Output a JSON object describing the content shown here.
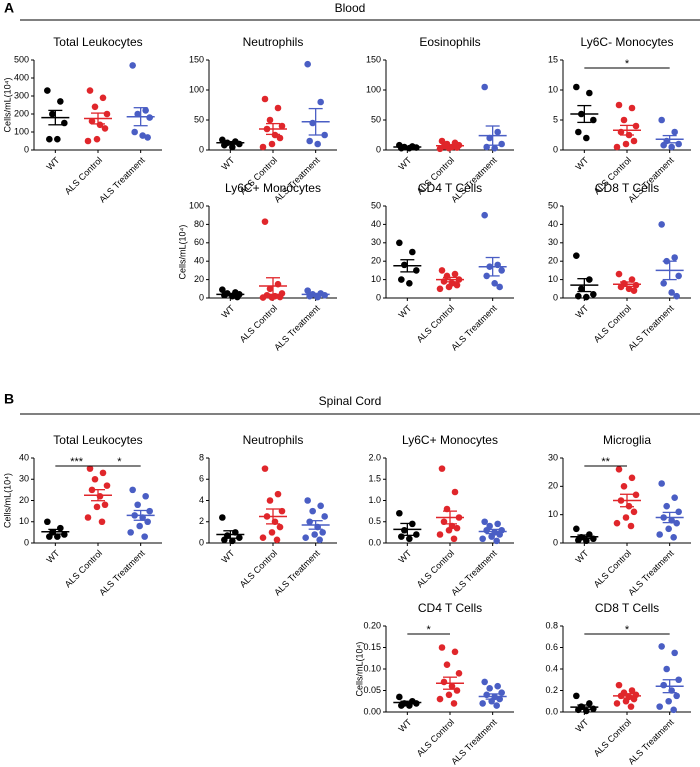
{
  "sections": [
    {
      "label": "A",
      "title": "Blood"
    },
    {
      "label": "B",
      "title": "Spinal Cord"
    }
  ],
  "chart_data": [
    {
      "type": "scatter",
      "title": "Total Leukocytes",
      "y_label": "Cells/mL(10⁴)",
      "categories": [
        "WT",
        "ALS Control",
        "ALS Treatment"
      ],
      "ylim": [
        0,
        500
      ],
      "yticks": [
        0,
        100,
        200,
        300,
        400,
        500
      ],
      "groups": [
        {
          "color": "#000000",
          "values": [
            330,
            270,
            200,
            150,
            60,
            60
          ],
          "mean": 180,
          "sem": 40
        },
        {
          "color": "#e0262b",
          "values": [
            330,
            290,
            240,
            200,
            160,
            140,
            120,
            60,
            50
          ],
          "mean": 175,
          "sem": 30
        },
        {
          "color": "#4a5ec4",
          "values": [
            470,
            220,
            200,
            180,
            100,
            80,
            70
          ],
          "mean": 185,
          "sem": 50
        }
      ]
    },
    {
      "type": "scatter",
      "title": "Neutrophils",
      "categories": [
        "WT",
        "ALS Control",
        "ALS Treatment"
      ],
      "ylim": [
        0,
        150
      ],
      "yticks": [
        0,
        50,
        100,
        150
      ],
      "groups": [
        {
          "color": "#000000",
          "values": [
            17,
            14,
            12,
            10,
            8,
            5
          ],
          "mean": 12,
          "sem": 2
        },
        {
          "color": "#e0262b",
          "values": [
            85,
            70,
            50,
            40,
            35,
            25,
            20,
            10,
            5
          ],
          "mean": 35,
          "sem": 9
        },
        {
          "color": "#4a5ec4",
          "values": [
            143,
            80,
            45,
            25,
            15,
            10
          ],
          "mean": 47,
          "sem": 22
        }
      ]
    },
    {
      "type": "scatter",
      "title": "Eosinophils",
      "categories": [
        "WT",
        "ALS Control",
        "ALS Treatment"
      ],
      "ylim": [
        0,
        150
      ],
      "yticks": [
        0,
        50,
        100,
        150
      ],
      "groups": [
        {
          "color": "#000000",
          "values": [
            8,
            6,
            5,
            4,
            3,
            3
          ],
          "mean": 5,
          "sem": 1
        },
        {
          "color": "#e0262b",
          "values": [
            15,
            12,
            10,
            8,
            6,
            5,
            4,
            3,
            2
          ],
          "mean": 7,
          "sem": 1.5
        },
        {
          "color": "#4a5ec4",
          "values": [
            105,
            30,
            20,
            10,
            5,
            3
          ],
          "mean": 24,
          "sem": 16
        }
      ]
    },
    {
      "type": "scatter",
      "title": "Ly6C- Monocytes",
      "categories": [
        "WT",
        "ALS Control",
        "ALS Treatment"
      ],
      "ylim": [
        0,
        15
      ],
      "yticks": [
        0,
        5,
        10,
        15
      ],
      "groups": [
        {
          "color": "#000000",
          "values": [
            10.5,
            9.5,
            6,
            5,
            3,
            2
          ],
          "mean": 6,
          "sem": 1.4
        },
        {
          "color": "#e0262b",
          "values": [
            7.5,
            7,
            5,
            4,
            3,
            2.5,
            1.5,
            1,
            0.5
          ],
          "mean": 3.3,
          "sem": 0.8
        },
        {
          "color": "#4a5ec4",
          "values": [
            5,
            3,
            1.5,
            1,
            0.8,
            0.5
          ],
          "mean": 1.8,
          "sem": 0.6
        }
      ],
      "significance": [
        {
          "between": [
            0,
            2
          ],
          "label": "*"
        }
      ]
    },
    {
      "type": "scatter",
      "title": "Ly6C+ Monocytes",
      "y_label": "Cells/mL(10⁴)",
      "categories": [
        "WT",
        "ALS Control",
        "ALS Treatment"
      ],
      "ylim": [
        0,
        100
      ],
      "yticks": [
        0,
        20,
        40,
        60,
        80,
        100
      ],
      "groups": [
        {
          "color": "#000000",
          "values": [
            9,
            6,
            5,
            4,
            3,
            2,
            1
          ],
          "mean": 4,
          "sem": 1
        },
        {
          "color": "#e0262b",
          "values": [
            83,
            15,
            10,
            5,
            3,
            2,
            1,
            0.5,
            0.5
          ],
          "mean": 13,
          "sem": 9
        },
        {
          "color": "#4a5ec4",
          "values": [
            8,
            5,
            4,
            3,
            2,
            1
          ],
          "mean": 4,
          "sem": 1
        }
      ]
    },
    {
      "type": "scatter",
      "title": "CD4 T Cells",
      "categories": [
        "WT",
        "ALS Control",
        "ALS Treatment"
      ],
      "ylim": [
        0,
        50
      ],
      "yticks": [
        0,
        10,
        20,
        30,
        40,
        50
      ],
      "groups": [
        {
          "color": "#000000",
          "values": [
            30,
            25,
            18,
            15,
            10,
            8
          ],
          "mean": 17.5,
          "sem": 3.3
        },
        {
          "color": "#e0262b",
          "values": [
            15,
            13,
            12,
            10,
            9,
            8,
            7,
            6,
            5
          ],
          "mean": 10,
          "sem": 1.2
        },
        {
          "color": "#4a5ec4",
          "values": [
            45,
            18,
            17,
            15,
            12,
            8,
            6
          ],
          "mean": 17,
          "sem": 5
        }
      ]
    },
    {
      "type": "scatter",
      "title": "CD8 T Cells",
      "categories": [
        "WT",
        "ALS Control",
        "ALS Treatment"
      ],
      "ylim": [
        0,
        50
      ],
      "yticks": [
        0,
        10,
        20,
        30,
        40,
        50
      ],
      "groups": [
        {
          "color": "#000000",
          "values": [
            23,
            10,
            5,
            2,
            1,
            0.5
          ],
          "mean": 7,
          "sem": 3.5
        },
        {
          "color": "#e0262b",
          "values": [
            13,
            10,
            8,
            7,
            6,
            5,
            4
          ],
          "mean": 7.5,
          "sem": 1.2
        },
        {
          "color": "#4a5ec4",
          "values": [
            40,
            22,
            20,
            12,
            8,
            3,
            1
          ],
          "mean": 15,
          "sem": 5
        }
      ]
    },
    {
      "type": "scatter",
      "title": "Total Leukocytes",
      "y_label": "Cells/mL(10⁴)",
      "categories": [
        "WT",
        "ALS Control",
        "ALS Treatment"
      ],
      "ylim": [
        0,
        40
      ],
      "yticks": [
        0,
        10,
        20,
        30,
        40
      ],
      "groups": [
        {
          "color": "#000000",
          "values": [
            10,
            7,
            5,
            4,
            3,
            3
          ],
          "mean": 5.3,
          "sem": 1.1
        },
        {
          "color": "#e0262b",
          "values": [
            35,
            33,
            30,
            27,
            25,
            22,
            18,
            17,
            12,
            10
          ],
          "mean": 22.5,
          "sem": 2.6
        },
        {
          "color": "#4a5ec4",
          "values": [
            25,
            22,
            18,
            15,
            13,
            12,
            10,
            8,
            5,
            3
          ],
          "mean": 13,
          "sem": 2.3
        }
      ],
      "significance": [
        {
          "between": [
            0,
            1
          ],
          "label": "***"
        },
        {
          "between": [
            1,
            2
          ],
          "label": "*"
        }
      ]
    },
    {
      "type": "scatter",
      "title": "Neutrophils",
      "categories": [
        "WT",
        "ALS Control",
        "ALS Treatment"
      ],
      "ylim": [
        0,
        8
      ],
      "yticks": [
        0,
        2,
        4,
        6,
        8
      ],
      "groups": [
        {
          "color": "#000000",
          "values": [
            2.4,
            1,
            0.7,
            0.5,
            0.3,
            0.2
          ],
          "mean": 0.8,
          "sem": 0.35
        },
        {
          "color": "#e0262b",
          "values": [
            7,
            4.6,
            4,
            3,
            2.5,
            2,
            1.5,
            1,
            0.5,
            0.3
          ],
          "mean": 2.5,
          "sem": 0.7
        },
        {
          "color": "#4a5ec4",
          "values": [
            4,
            3.5,
            3,
            2.5,
            2,
            1.5,
            1,
            0.8,
            0.5,
            0.3
          ],
          "mean": 1.7,
          "sem": 0.4
        }
      ]
    },
    {
      "type": "scatter",
      "title": "Ly6C+ Monocytes",
      "categories": [
        "WT",
        "ALS Control",
        "ALS Treatment"
      ],
      "ylim": [
        0,
        2
      ],
      "yticks": [
        {
          "value": 0,
          "label": "0.0"
        },
        0.5,
        {
          "value": 1,
          "label": "1.0"
        },
        1.5,
        {
          "value": 2,
          "label": "2.0"
        }
      ],
      "groups": [
        {
          "color": "#000000",
          "values": [
            0.7,
            0.45,
            0.3,
            0.2,
            0.15,
            0.1
          ],
          "mean": 0.32,
          "sem": 0.14
        },
        {
          "color": "#e0262b",
          "values": [
            1.75,
            1.2,
            0.8,
            0.6,
            0.5,
            0.4,
            0.35,
            0.3,
            0.2,
            0.1
          ],
          "mean": 0.6,
          "sem": 0.15
        },
        {
          "color": "#4a5ec4",
          "values": [
            0.5,
            0.45,
            0.4,
            0.3,
            0.3,
            0.25,
            0.2,
            0.15,
            0.1,
            0.05
          ],
          "mean": 0.27,
          "sem": 0.05
        }
      ]
    },
    {
      "type": "scatter",
      "title": "Microglia",
      "categories": [
        "WT",
        "ALS Control",
        "ALS Treatment"
      ],
      "ylim": [
        0,
        30
      ],
      "yticks": [
        0,
        10,
        20,
        30
      ],
      "groups": [
        {
          "color": "#000000",
          "values": [
            5,
            3,
            2,
            1.5,
            1,
            0.8
          ],
          "mean": 2.2,
          "sem": 0.6
        },
        {
          "color": "#e0262b",
          "values": [
            26,
            23,
            20,
            17,
            15,
            13,
            11,
            9,
            7,
            6
          ],
          "mean": 15,
          "sem": 2.2
        },
        {
          "color": "#4a5ec4",
          "values": [
            21,
            16,
            13,
            11,
            9,
            8,
            7,
            5,
            3,
            2
          ],
          "mean": 9,
          "sem": 1.8
        }
      ],
      "significance": [
        {
          "between": [
            0,
            1
          ],
          "label": "**"
        }
      ]
    },
    {
      "type": "scatter",
      "title": "CD4 T Cells",
      "y_label": "Cells/mL(10⁴)",
      "categories": [
        "WT",
        "ALS Control",
        "ALS Treatment"
      ],
      "ylim": [
        0,
        0.2
      ],
      "yticks": [
        {
          "value": 0,
          "label": "0.00"
        },
        0.05,
        {
          "value": 0.1,
          "label": "0.10"
        },
        0.15,
        {
          "value": 0.2,
          "label": "0.20"
        }
      ],
      "groups": [
        {
          "color": "#000000",
          "values": [
            0.035,
            0.025,
            0.02,
            0.02,
            0.015,
            0.015
          ],
          "mean": 0.022,
          "sem": 0.003
        },
        {
          "color": "#e0262b",
          "values": [
            0.15,
            0.14,
            0.11,
            0.09,
            0.07,
            0.06,
            0.05,
            0.04,
            0.03,
            0.02
          ],
          "mean": 0.067,
          "sem": 0.014
        },
        {
          "color": "#4a5ec4",
          "values": [
            0.07,
            0.06,
            0.055,
            0.045,
            0.04,
            0.035,
            0.03,
            0.025,
            0.02,
            0.015
          ],
          "mean": 0.036,
          "sem": 0.006
        }
      ],
      "significance": [
        {
          "between": [
            0,
            1
          ],
          "label": "*"
        }
      ]
    },
    {
      "type": "scatter",
      "title": "CD8 T Cells",
      "categories": [
        "WT",
        "ALS Control",
        "ALS Treatment"
      ],
      "ylim": [
        0,
        0.8
      ],
      "yticks": [
        {
          "value": 0,
          "label": "0.0"
        },
        0.2,
        0.4,
        0.6,
        0.8
      ],
      "groups": [
        {
          "color": "#000000",
          "values": [
            0.15,
            0.08,
            0.05,
            0.03,
            0.02,
            0.01
          ],
          "mean": 0.045,
          "sem": 0.02
        },
        {
          "color": "#e0262b",
          "values": [
            0.25,
            0.2,
            0.18,
            0.16,
            0.15,
            0.14,
            0.12,
            0.1,
            0.08,
            0.05
          ],
          "mean": 0.15,
          "sem": 0.02
        },
        {
          "color": "#4a5ec4",
          "values": [
            0.61,
            0.55,
            0.4,
            0.3,
            0.25,
            0.2,
            0.15,
            0.1,
            0.05,
            0.02
          ],
          "mean": 0.24,
          "sem": 0.06
        }
      ],
      "significance": [
        {
          "between": [
            0,
            2
          ],
          "label": "*"
        }
      ]
    }
  ]
}
